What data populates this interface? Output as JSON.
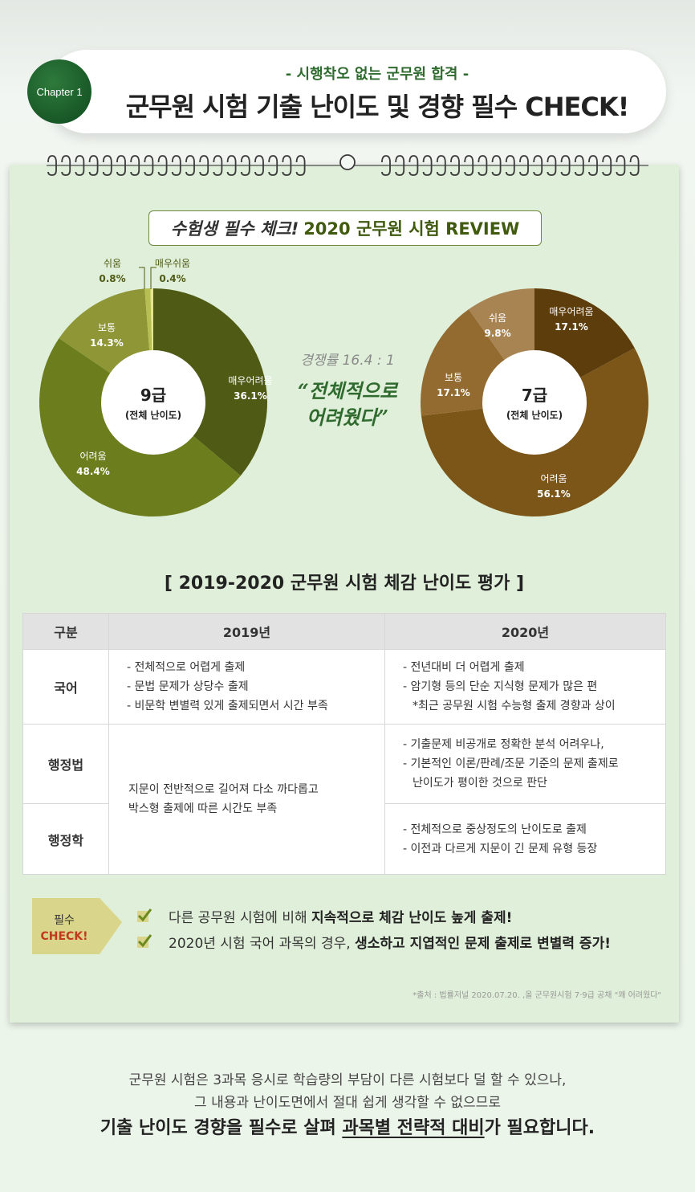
{
  "header": {
    "chapter": "Chapter 1",
    "subtitle": "- 시행착오 없는 군무원 합격 -",
    "title": "군무원 시험 기출 난이도 및 경향 필수 CHECK!"
  },
  "review": {
    "prefix": "수험생 필수 체크!",
    "title": "2020 군무원 시험 REVIEW"
  },
  "middle": {
    "ratio": "경쟁률 16.4 : 1",
    "quote_line1": "“전체적으로",
    "quote_line2": "어려웠다”"
  },
  "chart_data": [
    {
      "type": "pie",
      "title": "9급",
      "subtitle": "(전체 난이도)",
      "labels": [
        "매우어려움",
        "어려움",
        "보통",
        "쉬움",
        "매우쉬움"
      ],
      "values": [
        36.1,
        48.4,
        14.3,
        0.8,
        0.4
      ],
      "value_labels": [
        "36.1%",
        "48.4%",
        "14.3%",
        "0.8%",
        "0.4%"
      ],
      "colors": [
        "#4f5a14",
        "#6c7d1e",
        "#8e9636",
        "#b8bf52",
        "#e5e58f"
      ]
    },
    {
      "type": "pie",
      "title": "7급",
      "subtitle": "(전체 난이도)",
      "labels": [
        "매우어려움",
        "어려움",
        "보통",
        "쉬움"
      ],
      "values": [
        17.1,
        56.1,
        17.1,
        9.8
      ],
      "value_labels": [
        "17.1%",
        "56.1%",
        "17.1%",
        "9.8%"
      ],
      "colors": [
        "#5e3d0c",
        "#7b5618",
        "#936a30",
        "#a98453"
      ]
    }
  ],
  "table": {
    "title": "[ 2019-2020 군무원 시험 체감 난이도 평가 ]",
    "headers": [
      "구분",
      "2019년",
      "2020년"
    ],
    "rows": {
      "korean": {
        "subject": "국어",
        "y2019": [
          "- 전체적으로 어렵게 출제",
          "- 문법 문제가 상당수 출제",
          "- 비문학 변별력 있게 출제되면서 시간 부족"
        ],
        "y2020": [
          "- 전년대비 더 어렵게 출제",
          "- 암기형 등의 단순 지식형 문제가 많은 편",
          "*최근 공무원 시험 수능형 출제 경향과 상이"
        ]
      },
      "admin_law": {
        "subject": "행정법",
        "y2020": [
          "- 기출문제 비공개로 정확한 분석 어려우나,",
          "- 기본적인 이론/판례/조문 기준의 문제 출제로",
          "난이도가 평이한 것으로 판단"
        ]
      },
      "admin_sci": {
        "subject": "행정학",
        "y2020": [
          "- 전체적으로 중상정도의 난이도로 출제",
          "- 이전과 다르게 지문이 긴 문제 유형 등장"
        ]
      },
      "merged_2019": [
        "지문이 전반적으로 길어져 다소 까다롭고",
        "박스형 출제에 따른 시간도 부족"
      ]
    }
  },
  "check": {
    "tag_line1": "필수",
    "tag_line2": "CHECK!",
    "line1_plain": "다른 공무원 시험에 비해 ",
    "line1_bold": "지속적으로 체감 난이도 높게 출제!",
    "line2_plain": "2020년 시험 국어 과목의 경우, ",
    "line2_bold": "생소하고 지엽적인 문제 출제로 변별력 증가!"
  },
  "source": "*출처 : 법률저널 2020.07.20. ,올 군무원시험 7·9급 공채 \"꽤 어려웠다\"",
  "footer": {
    "line1": "군무원 시험은 3과목 응시로 학습량의 부담이 다른 시험보다 덜 할 수 있으나,",
    "line2": "그 내용과 난이도면에서 절대 쉽게 생각할 수 없으므로",
    "line3_a": "기출 난이도 경향을 필수로 살펴 ",
    "line3_u": "과목별 전략적 대비",
    "line3_b": "가 필요합니다."
  },
  "colors": {
    "accent_green": "#2f6a2e",
    "board_bg": "#e0efd9"
  }
}
